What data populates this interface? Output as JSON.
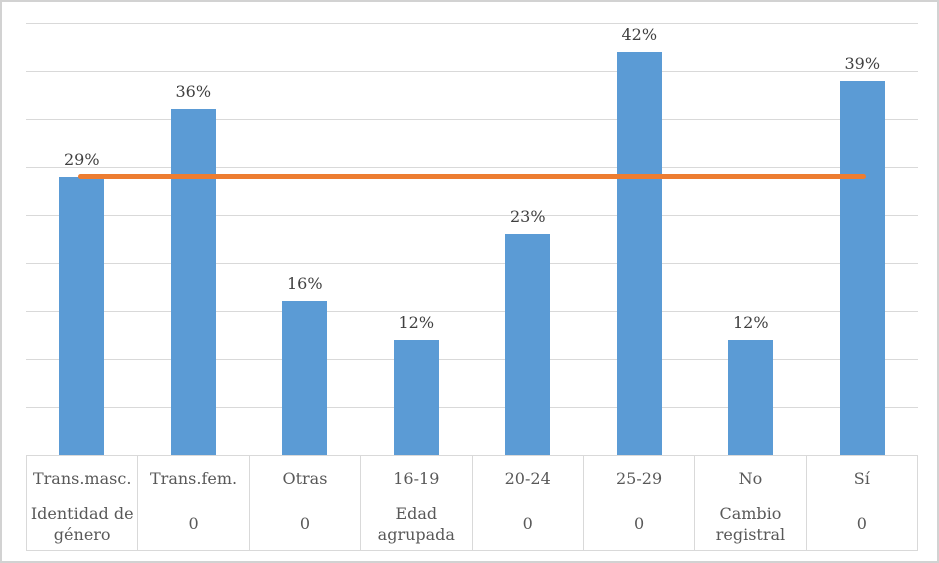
{
  "chart_data": {
    "type": "bar",
    "title": "",
    "xlabel": "",
    "ylabel": "",
    "categories": [
      "Trans.masc.",
      "Trans.fem.",
      "Otras",
      "16-19",
      "20-24",
      "25-29",
      "No",
      "Sí"
    ],
    "group_labels": [
      "Identidad de género",
      "0",
      "0",
      "Edad agrupada",
      "0",
      "0",
      "Cambio registral",
      "0"
    ],
    "series": [
      {
        "name": "percent-by-category",
        "type": "bar",
        "values": [
          29,
          36,
          16,
          12,
          23,
          42,
          12,
          39
        ],
        "color": "#5b9bd5"
      },
      {
        "name": "reference-line",
        "type": "line",
        "values": [
          29,
          29,
          29,
          29,
          29,
          29,
          29,
          29
        ],
        "color": "#ed7d31"
      }
    ],
    "data_labels": [
      "29%",
      "36%",
      "16%",
      "12%",
      "23%",
      "42%",
      "12%",
      "39%"
    ],
    "ylim": [
      0,
      45
    ],
    "grid_step": 5,
    "grid": true,
    "y_axis_tick_labels_visible": false,
    "legend_position": "none"
  },
  "colors": {
    "bar": "#5b9bd5",
    "line": "#ed7d31",
    "gridline": "#d9d9d9",
    "table_border": "#d9d9d9",
    "data_label_text": "#404040",
    "axis_text": "#595959",
    "frame_border": "#d2d2d2",
    "background": "#ffffff"
  }
}
